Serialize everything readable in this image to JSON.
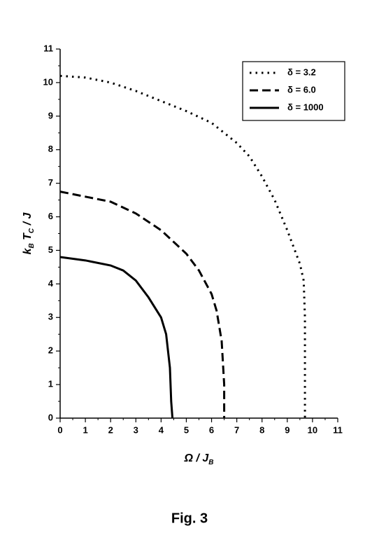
{
  "chart_data": {
    "type": "line",
    "xlabel": [
      "Ω / J",
      "B"
    ],
    "ylabel": [
      "k",
      "B",
      " T",
      "C",
      " / J"
    ],
    "caption": "Fig. 3",
    "xlim": [
      0,
      11
    ],
    "ylim": [
      0,
      11
    ],
    "xticks": [
      0,
      1,
      2,
      3,
      4,
      5,
      6,
      7,
      8,
      9,
      10,
      11
    ],
    "yticks": [
      0,
      1,
      2,
      3,
      4,
      5,
      6,
      7,
      8,
      9,
      10,
      11
    ],
    "legend": "upper right",
    "series": [
      {
        "name": "δ = 3.2",
        "color": "#000000",
        "dash": "dot",
        "x": [
          0,
          1,
          2,
          3,
          4,
          5,
          6,
          7,
          7.5,
          8,
          8.5,
          9,
          9.3,
          9.5,
          9.65,
          9.7,
          9.7
        ],
        "values": [
          10.2,
          10.15,
          10.0,
          9.75,
          9.45,
          9.15,
          8.8,
          8.2,
          7.8,
          7.2,
          6.5,
          5.6,
          5.0,
          4.6,
          4.1,
          3.0,
          0
        ]
      },
      {
        "name": "δ = 6.0",
        "color": "#000000",
        "dash": "dash",
        "x": [
          0,
          1,
          2,
          3,
          4,
          5,
          5.5,
          6,
          6.2,
          6.4,
          6.5,
          6.5
        ],
        "values": [
          6.75,
          6.6,
          6.45,
          6.1,
          5.6,
          4.9,
          4.4,
          3.7,
          3.2,
          2.3,
          1.0,
          0
        ]
      },
      {
        "name": "δ = 1000",
        "color": "#000000",
        "dash": "solid",
        "x": [
          0,
          1,
          2,
          2.5,
          3,
          3.5,
          4,
          4.2,
          4.35,
          4.4,
          4.45
        ],
        "values": [
          4.8,
          4.7,
          4.55,
          4.4,
          4.1,
          3.6,
          3.0,
          2.5,
          1.5,
          0.5,
          0
        ]
      }
    ]
  }
}
